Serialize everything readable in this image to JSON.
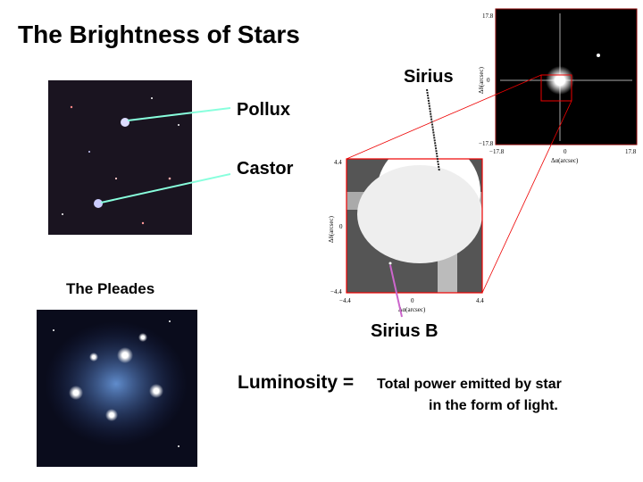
{
  "slide": {
    "title": "The Brightness of Stars",
    "gemini_labels": [
      "Pollux",
      "Castor"
    ],
    "pleiades_caption": "The Pleades",
    "sirius_label": "Sirius",
    "sirius_b_label": "Sirius B",
    "wide_view": {
      "y_ticks": [
        "17.8",
        "0",
        "−17.8"
      ],
      "x_ticks": [
        "−17.8",
        "0",
        "17.8"
      ],
      "x_label": "Δα(arcsec)",
      "y_label": "Δδ(arcsec)"
    },
    "zoom_view": {
      "y_ticks": [
        "4.4",
        "0",
        "−4.4"
      ],
      "x_ticks": [
        "−4.4",
        "0",
        "4.4"
      ],
      "x_label": "Δα(arcsec)",
      "y_label": "Δδ(arcsec)"
    },
    "definition": {
      "term": "Luminosity =",
      "line1": "Total power emitted by star",
      "line2": "in the form of light."
    }
  }
}
